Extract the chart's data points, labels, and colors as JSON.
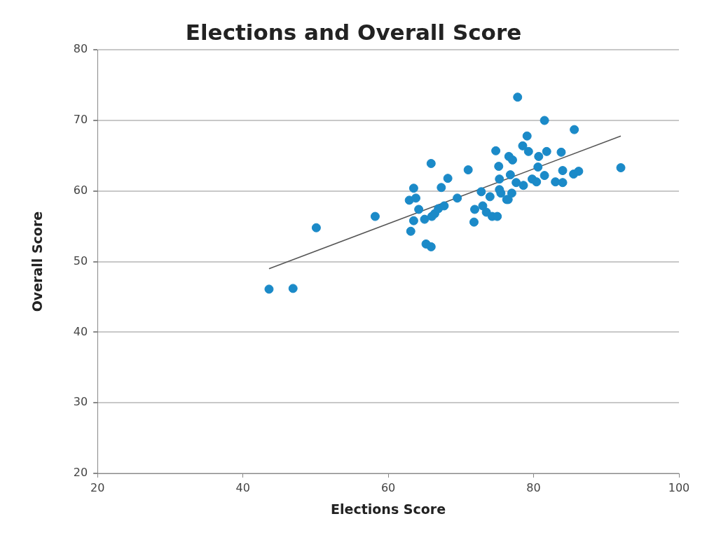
{
  "chart_data": {
    "type": "scatter",
    "title": "Elections and Overall Score",
    "xlabel": "Elections Score",
    "ylabel": "Overall Score",
    "xlim": [
      20,
      100
    ],
    "xticks": [
      20,
      40,
      60,
      80,
      100
    ],
    "ylim": [
      20,
      80
    ],
    "yticks": [
      20,
      30,
      40,
      50,
      60,
      70,
      80
    ],
    "grid": "y",
    "legend": false,
    "marker": "circle",
    "series": [
      {
        "type": "scatter",
        "color": "#1b8ac8",
        "x": [
          43.6,
          46.9,
          50.1,
          58.2,
          65.9,
          71.0,
          68.2,
          63.5,
          67.3,
          62.9,
          63.8,
          64.2,
          63.5,
          63.1,
          65.0,
          66.0,
          66.4,
          66.9,
          67.7,
          65.2,
          65.9,
          69.5,
          71.9,
          71.8,
          72.8,
          73.0,
          73.5,
          74.0,
          74.3,
          75.0,
          75.2,
          75.3,
          75.3,
          75.5,
          76.5,
          77.0,
          76.8,
          76.6,
          77.1,
          77.6,
          77.8,
          81.5,
          85.6,
          92.0,
          79.1,
          78.5,
          79.3,
          74.8,
          80.7,
          81.8,
          83.8,
          80.6,
          84.0,
          85.5,
          86.2,
          81.5,
          79.8,
          80.4,
          83.0,
          84.0,
          78.6,
          76.3
        ],
        "values": [
          46.1,
          46.2,
          54.8,
          56.4,
          63.9,
          63.0,
          61.8,
          60.4,
          60.5,
          58.7,
          59.0,
          57.4,
          55.8,
          54.3,
          56.0,
          56.4,
          56.8,
          57.5,
          57.9,
          52.5,
          52.1,
          59.0,
          57.4,
          55.6,
          59.9,
          57.9,
          57.0,
          59.2,
          56.4,
          56.4,
          63.5,
          61.7,
          60.2,
          59.7,
          58.8,
          59.7,
          62.3,
          64.9,
          64.4,
          61.2,
          73.3,
          70.0,
          68.7,
          63.3,
          67.8,
          66.4,
          65.6,
          65.7,
          64.9,
          65.6,
          65.5,
          63.4,
          62.9,
          62.4,
          62.8,
          62.2,
          61.7,
          61.3,
          61.3,
          61.2,
          60.8,
          58.8
        ]
      },
      {
        "type": "line",
        "color": "#555555",
        "x": [
          43.6,
          92.0
        ],
        "values": [
          49.0,
          67.8
        ],
        "marker": "none",
        "line_style": "solid"
      }
    ]
  }
}
